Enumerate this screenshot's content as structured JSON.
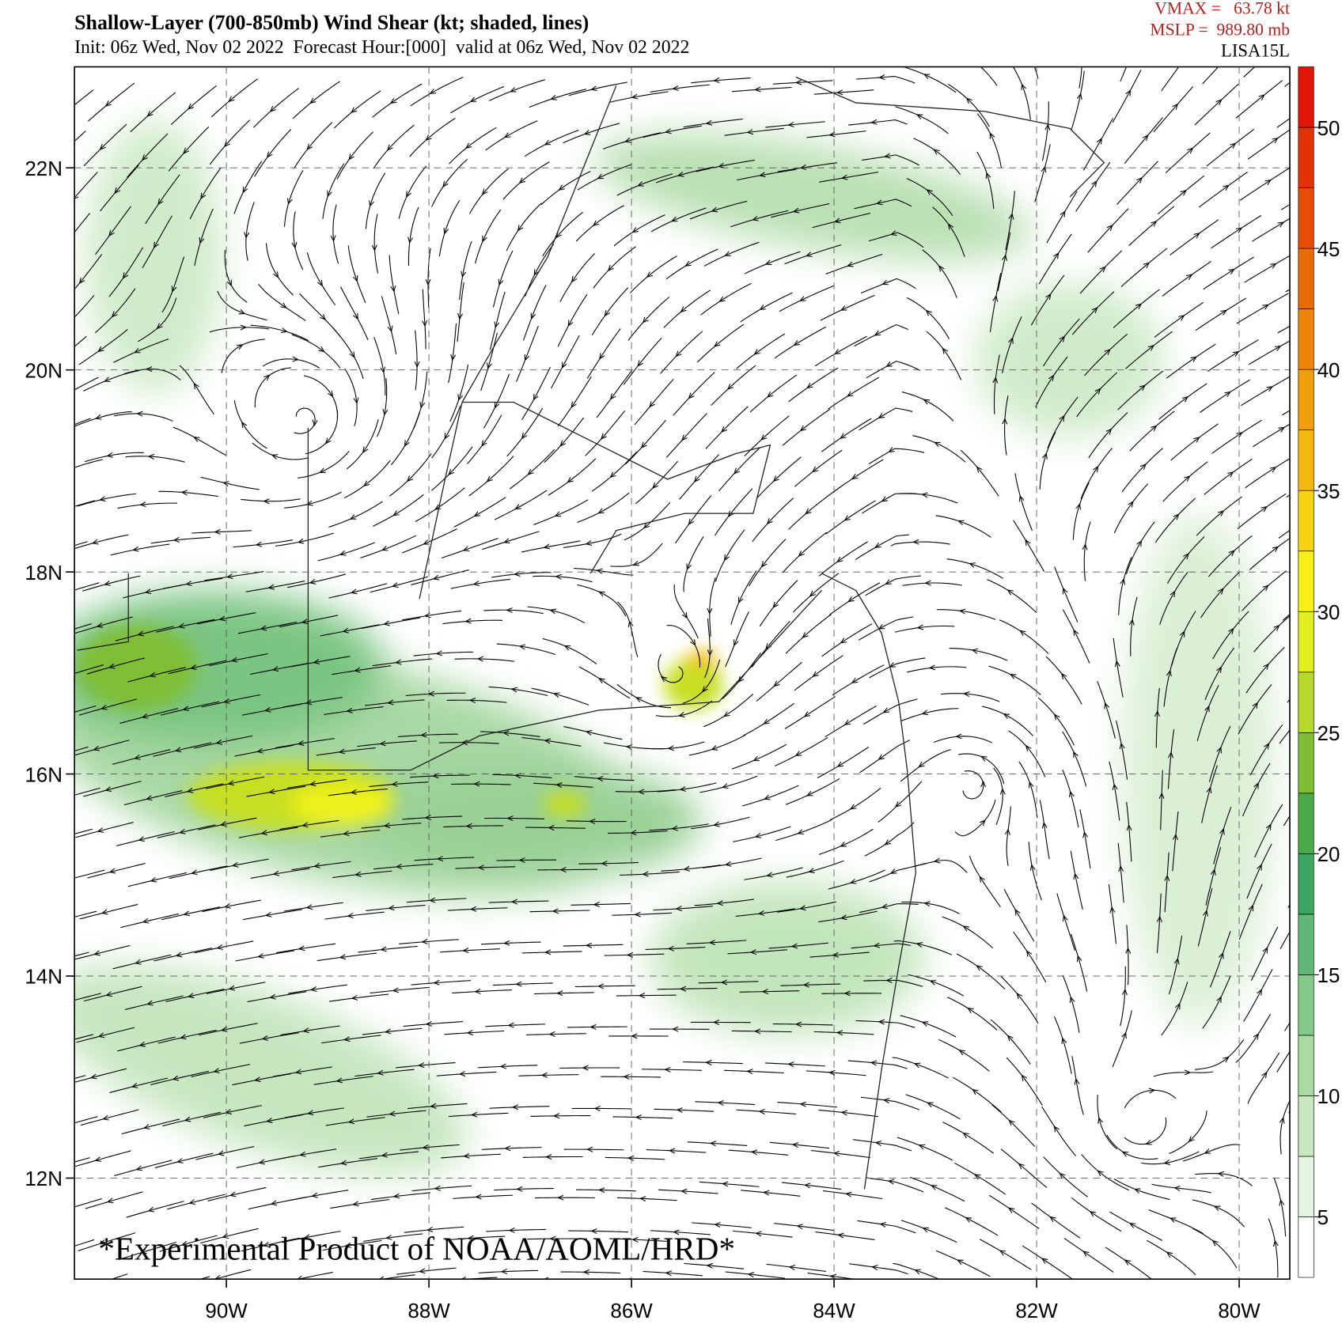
{
  "header": {
    "title": "Shallow-Layer (700-850mb) Wind Shear (kt; shaded, lines)",
    "subtitle": "Init: 06z Wed, Nov 02 2022  Forecast Hour:[000]  valid at 06z Wed, Nov 02 2022",
    "vmax": "VMAX =   63.78 kt",
    "mslp": "MSLP =  989.80 mb",
    "storm": "LISA15L"
  },
  "map": {
    "xlim": [
      -91.5,
      -79.5
    ],
    "ylim": [
      11,
      23
    ],
    "xticks": [
      {
        "value": -90,
        "label": "90W"
      },
      {
        "value": -88,
        "label": "88W"
      },
      {
        "value": -86,
        "label": "86W"
      },
      {
        "value": -84,
        "label": "84W"
      },
      {
        "value": -82,
        "label": "82W"
      },
      {
        "value": -80,
        "label": "80W"
      }
    ],
    "yticks": [
      {
        "value": 12,
        "label": "12N"
      },
      {
        "value": 14,
        "label": "14N"
      },
      {
        "value": 16,
        "label": "16N"
      },
      {
        "value": 18,
        "label": "18N"
      },
      {
        "value": 20,
        "label": "20N"
      },
      {
        "value": 22,
        "label": "22N"
      }
    ],
    "grid": true,
    "watermark": "*Experimental Product of NOAA/AOML/HRD*"
  },
  "colorbar": {
    "lim": [
      2.5,
      52.5
    ],
    "ticks": [
      5,
      10,
      15,
      20,
      25,
      30,
      35,
      40,
      45,
      50
    ],
    "colors": [
      "#ffffff",
      "#e6f5e2",
      "#c8e8c1",
      "#a9dba3",
      "#84c989",
      "#5fb874",
      "#3aa560",
      "#4aaa4a",
      "#7fbe34",
      "#b7d92a",
      "#e3ee1f",
      "#f7f016",
      "#f6d40f",
      "#f3b90c",
      "#f19f0a",
      "#ee8508",
      "#ea6a06",
      "#e64e05",
      "#e33204",
      "#e01503"
    ]
  }
}
